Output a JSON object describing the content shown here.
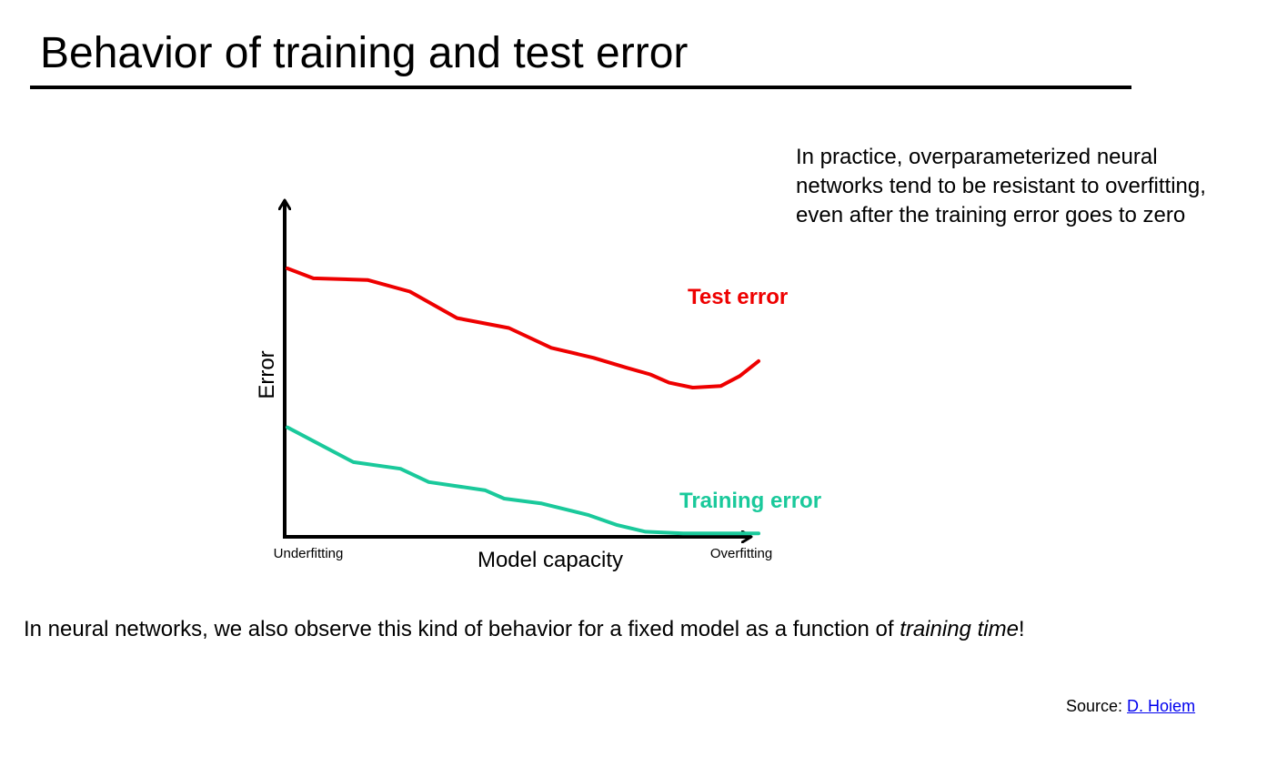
{
  "slide": {
    "title": "Behavior of training and test error",
    "note": "In practice, overparameterized neural networks tend to be resistant to overfitting, even after the training error goes to zero",
    "bottom_text_prefix": "In neural networks, we also observe this kind of behavior for a fixed model as a function of ",
    "bottom_text_emphasis": "training time",
    "bottom_text_suffix": "!",
    "source_label": "Source: ",
    "source_link_text": "D. Hoiem"
  },
  "chart_data": {
    "type": "line",
    "title": "",
    "xlabel": "Model capacity",
    "ylabel": "Error",
    "x_tick_left": "Underfitting",
    "x_tick_right": "Overfitting",
    "xlim": [
      0,
      1
    ],
    "ylim": [
      0,
      1
    ],
    "grid": false,
    "legend": "none",
    "series": [
      {
        "name": "Test error",
        "color": "#ee0000",
        "x": [
          0.0,
          0.055,
          0.17,
          0.26,
          0.36,
          0.47,
          0.56,
          0.65,
          0.72,
          0.77,
          0.81,
          0.86,
          0.92,
          0.96,
          1.0
        ],
        "y": [
          0.805,
          0.775,
          0.77,
          0.735,
          0.655,
          0.625,
          0.565,
          0.535,
          0.505,
          0.485,
          0.46,
          0.445,
          0.45,
          0.48,
          0.525
        ]
      },
      {
        "name": "Training error",
        "color": "#1ac99b",
        "x": [
          0.0,
          0.14,
          0.24,
          0.3,
          0.42,
          0.46,
          0.54,
          0.64,
          0.7,
          0.76,
          0.84,
          1.0
        ],
        "y": [
          0.325,
          0.22,
          0.2,
          0.16,
          0.135,
          0.11,
          0.095,
          0.06,
          0.03,
          0.01,
          0.005,
          0.005
        ]
      }
    ]
  }
}
